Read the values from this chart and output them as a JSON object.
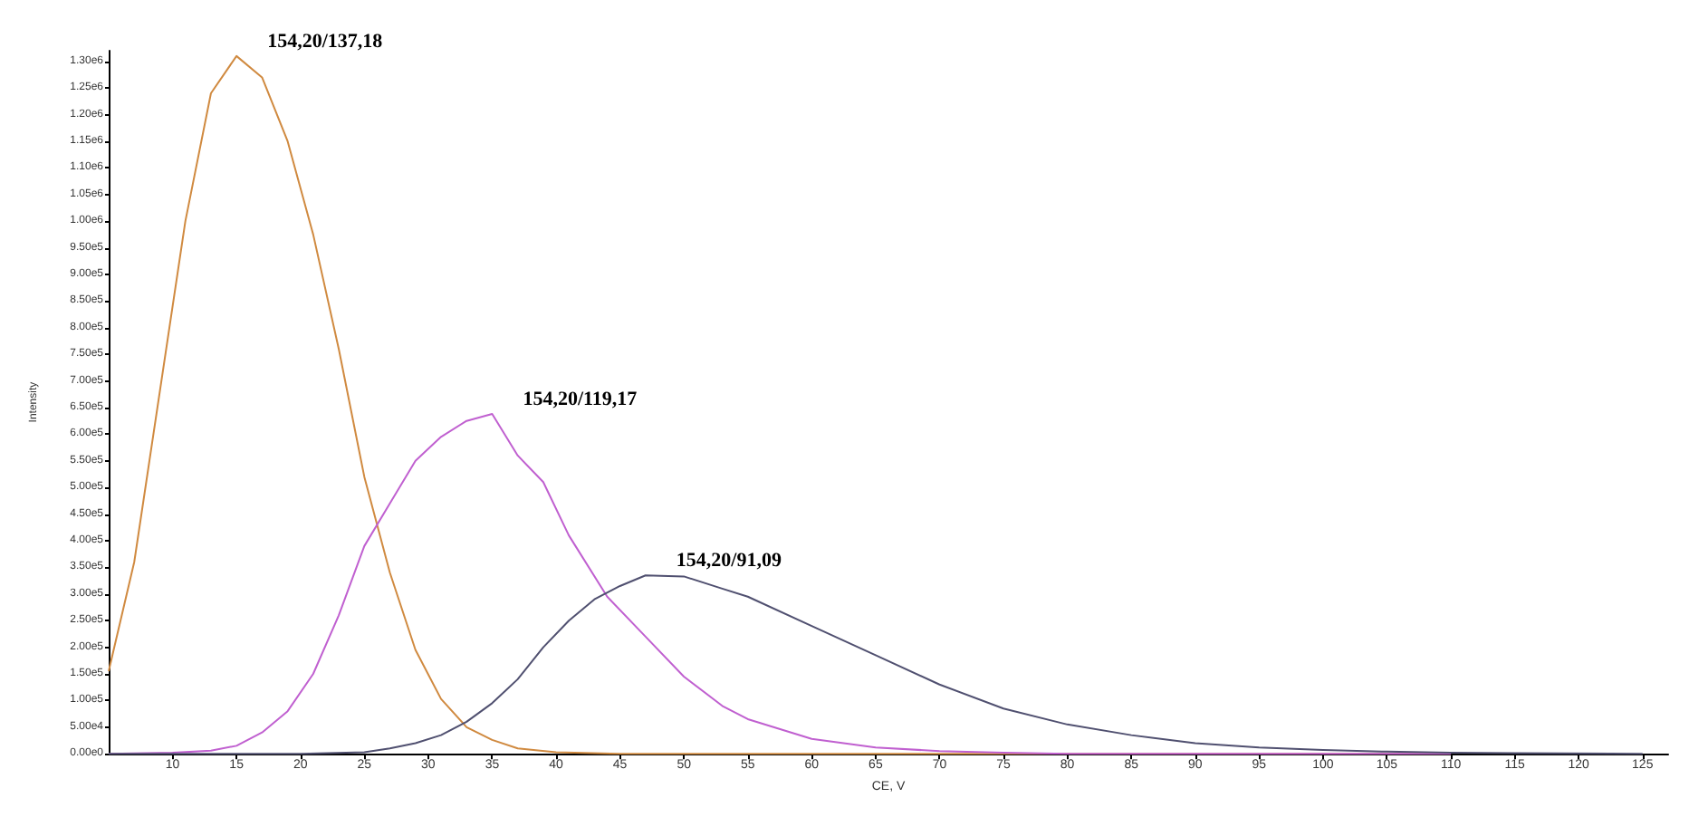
{
  "chart_data": {
    "type": "line",
    "xlabel": "CE, V",
    "ylabel": "Intensity",
    "xlim": [
      5,
      127
    ],
    "ylim": [
      0,
      1320000
    ],
    "xticks": [
      10,
      15,
      20,
      25,
      30,
      35,
      40,
      45,
      50,
      55,
      60,
      65,
      70,
      75,
      80,
      85,
      90,
      95,
      100,
      105,
      110,
      115,
      120,
      125
    ],
    "yticks": [
      {
        "value": 0,
        "label": "0.00e0"
      },
      {
        "value": 50000,
        "label": "5.00e4"
      },
      {
        "value": 100000,
        "label": "1.00e5"
      },
      {
        "value": 150000,
        "label": "1.50e5"
      },
      {
        "value": 200000,
        "label": "2.00e5"
      },
      {
        "value": 250000,
        "label": "2.50e5"
      },
      {
        "value": 300000,
        "label": "3.00e5"
      },
      {
        "value": 350000,
        "label": "3.50e5"
      },
      {
        "value": 400000,
        "label": "4.00e5"
      },
      {
        "value": 450000,
        "label": "4.50e5"
      },
      {
        "value": 500000,
        "label": "5.00e5"
      },
      {
        "value": 550000,
        "label": "5.50e5"
      },
      {
        "value": 600000,
        "label": "6.00e5"
      },
      {
        "value": 650000,
        "label": "6.50e5"
      },
      {
        "value": 700000,
        "label": "7.00e5"
      },
      {
        "value": 750000,
        "label": "7.50e5"
      },
      {
        "value": 800000,
        "label": "8.00e5"
      },
      {
        "value": 850000,
        "label": "8.50e5"
      },
      {
        "value": 900000,
        "label": "9.00e5"
      },
      {
        "value": 950000,
        "label": "9.50e5"
      },
      {
        "value": 1000000,
        "label": "1.00e6"
      },
      {
        "value": 1050000,
        "label": "1.05e6"
      },
      {
        "value": 1100000,
        "label": "1.10e6"
      },
      {
        "value": 1150000,
        "label": "1.15e6"
      },
      {
        "value": 1200000,
        "label": "1.20e6"
      },
      {
        "value": 1250000,
        "label": "1.25e6"
      },
      {
        "value": 1300000,
        "label": "1.30e6"
      }
    ],
    "grid": false,
    "legend": false,
    "marker": "none",
    "line_style": "solid",
    "series": [
      {
        "name": "154,20/137,18",
        "color": "#d08a40",
        "x": [
          5,
          7,
          9,
          11,
          13,
          15,
          17,
          19,
          21,
          23,
          25,
          27,
          29,
          31,
          33,
          35,
          37,
          40,
          45,
          50,
          60,
          80,
          110
        ],
        "values": [
          155000,
          360000,
          680000,
          1000000,
          1240000,
          1310000,
          1270000,
          1150000,
          975000,
          760000,
          520000,
          340000,
          195000,
          103000,
          50000,
          26000,
          10000,
          3000,
          0,
          0,
          0,
          0,
          0
        ]
      },
      {
        "name": "154,20/119,17",
        "color": "#c060d0",
        "x": [
          5,
          10,
          13,
          15,
          17,
          19,
          21,
          23,
          25,
          27,
          29,
          31,
          33,
          35,
          37,
          39,
          41,
          44,
          47,
          50,
          53,
          55,
          60,
          65,
          70,
          75,
          80,
          90,
          110
        ],
        "values": [
          0,
          2000,
          6000,
          15000,
          40000,
          80000,
          150000,
          260000,
          390000,
          470000,
          550000,
          595000,
          625000,
          638000,
          560000,
          510000,
          410000,
          295000,
          220000,
          145000,
          90000,
          65000,
          28000,
          12000,
          5000,
          2000,
          0,
          0,
          0
        ]
      },
      {
        "name": "154,20/91,09",
        "color": "#505070",
        "x": [
          5,
          20,
          25,
          27,
          29,
          31,
          33,
          35,
          37,
          39,
          41,
          43,
          45,
          47,
          50,
          53,
          55,
          60,
          65,
          70,
          75,
          80,
          85,
          90,
          95,
          100,
          105,
          110,
          115,
          125
        ],
        "values": [
          0,
          0,
          3000,
          10000,
          20000,
          35000,
          60000,
          95000,
          140000,
          200000,
          250000,
          290000,
          315000,
          335000,
          333000,
          310000,
          295000,
          240000,
          185000,
          130000,
          85000,
          55000,
          35000,
          20000,
          12000,
          7000,
          4000,
          2000,
          1000,
          0
        ]
      }
    ]
  }
}
